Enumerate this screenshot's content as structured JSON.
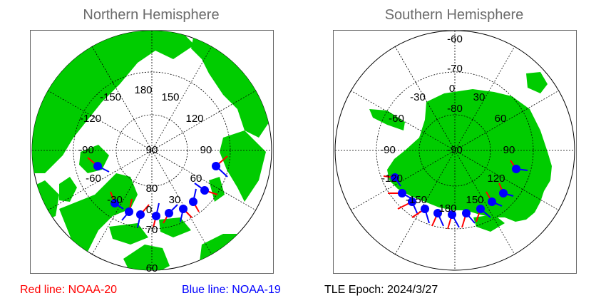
{
  "northern": {
    "title": "Northern Hemisphere",
    "latitude_labels": [
      "80",
      "70",
      "60"
    ],
    "longitude_labels": [
      "180",
      "150",
      "120",
      "90",
      "60",
      "30",
      "0",
      "-30",
      "-60",
      "-90",
      "-120",
      "-150"
    ],
    "center_label": "90"
  },
  "southern": {
    "title": "Southern Hemisphere",
    "latitude_labels": [
      "-60",
      "-70",
      "-80"
    ],
    "longitude_labels": [
      "0",
      "30",
      "60",
      "90",
      "120",
      "150",
      "180",
      "-150",
      "-120",
      "-90",
      "-60",
      "-30"
    ],
    "center_label": "-90"
  },
  "legend": {
    "red": "Red line: NOAA-20",
    "blue": "Blue line: NOAA-19",
    "epoch": "TLE Epoch: 2024/3/27"
  },
  "colors": {
    "land": "#00cc00",
    "ocean": "#ffffff",
    "grid": "#000000",
    "noaa20": "#ff0000",
    "noaa19": "#0000ff",
    "title": "#6b6b6b"
  }
}
